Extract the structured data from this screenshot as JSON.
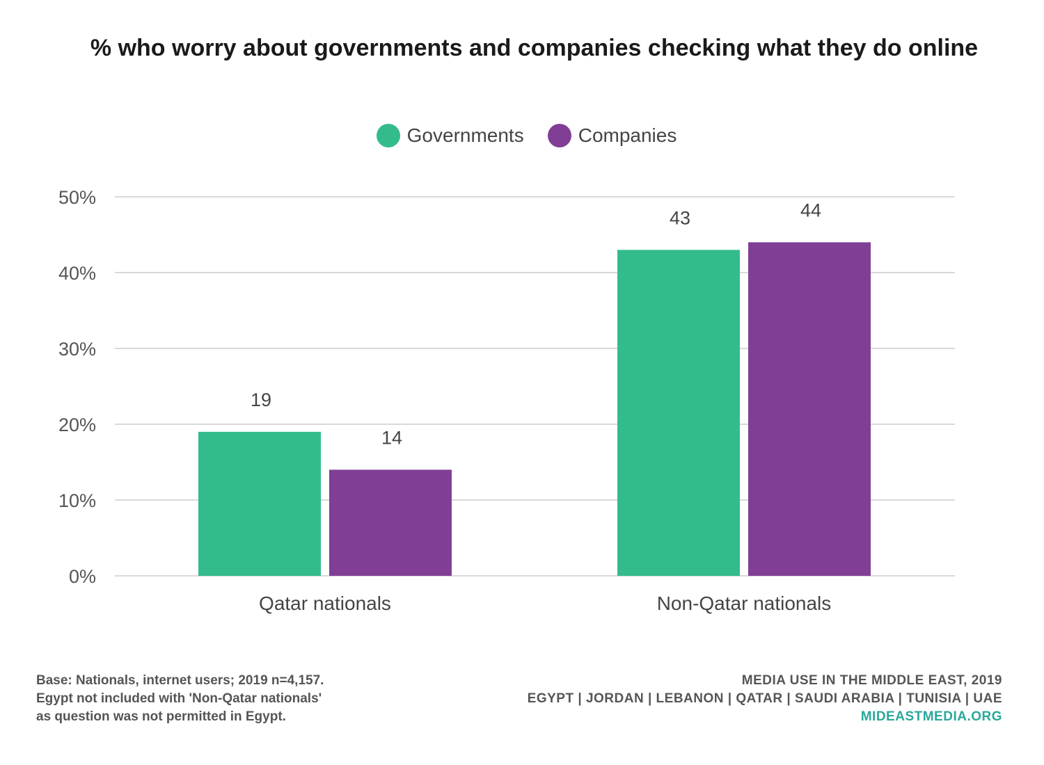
{
  "chart_data": {
    "type": "bar",
    "title": "% who worry about governments and companies checking what they do online",
    "categories": [
      "Qatar nationals",
      "Non-Qatar nationals"
    ],
    "series": [
      {
        "name": "Governments",
        "values": [
          19,
          43
        ],
        "color": "#34bb8c"
      },
      {
        "name": "Companies",
        "values": [
          14,
          44
        ],
        "color": "#803f95"
      }
    ],
    "ylim": [
      0,
      50
    ],
    "yticks": [
      0,
      10,
      20,
      30,
      40,
      50
    ],
    "ytick_labels": [
      "0%",
      "10%",
      "20%",
      "30%",
      "40%",
      "50%"
    ],
    "grid": true,
    "legend_position": "top-center"
  },
  "footer": {
    "notes": [
      "Base: Nationals, internet users; 2019 n=4,157.",
      "Egypt not included with 'Non-Qatar nationals'",
      "as question was not permitted in Egypt."
    ],
    "source_title": "MEDIA USE IN THE MIDDLE EAST, 2019",
    "source_countries": "EGYPT | JORDAN | LEBANON | QATAR | SAUDI ARABIA | TUNISIA | UAE",
    "source_link": "MIDEASTMEDIA.ORG"
  }
}
